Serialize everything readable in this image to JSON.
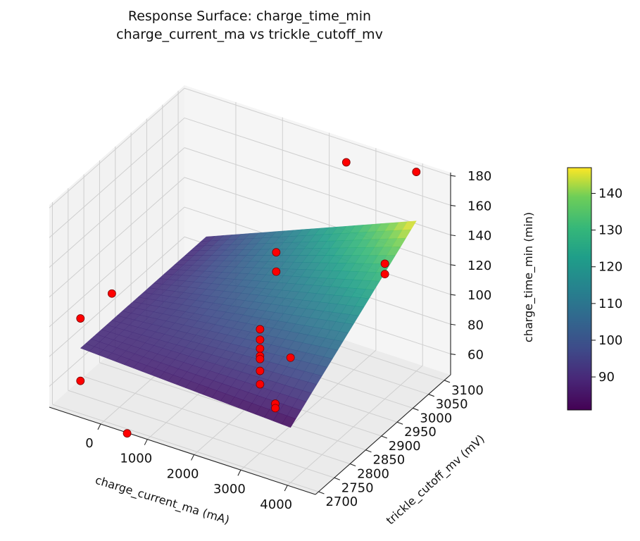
{
  "chart_data": {
    "type": "surface3d",
    "title": "Response Surface: charge_time_min",
    "subtitle": "charge_current_ma vs trickle_cutoff_mv",
    "xlabel": "charge_current_ma (mA)",
    "ylabel": "trickle_cutoff_mv (mV)",
    "zlabel": "charge_time_min (min)",
    "x_ticks": [
      "0",
      "1000",
      "2000",
      "3000",
      "4000"
    ],
    "y_ticks": [
      "2700",
      "2750",
      "2800",
      "2850",
      "2900",
      "2950",
      "3000",
      "3050",
      "3100"
    ],
    "z_ticks": [
      "60",
      "80",
      "100",
      "120",
      "140",
      "160",
      "180"
    ],
    "xlim": [
      -1100,
      4600
    ],
    "ylim": [
      2690,
      3120
    ],
    "zlim": [
      46,
      182
    ],
    "grid": true,
    "colormap": "viridis",
    "colorbar": {
      "ticks": [
        "90",
        "100",
        "110",
        "120",
        "130",
        "140"
      ],
      "min": 81,
      "max": 147
    },
    "surface": {
      "x_range": [
        -500,
        4000
      ],
      "y_range": [
        2700,
        3100
      ],
      "corner_values": {
        "x_min_y_min": 90,
        "x_max_y_min": 83,
        "x_min_y_max": 90,
        "x_max_y_max": 147
      }
    },
    "points": [
      {
        "x": 2500,
        "y": 3100,
        "z": 171
      },
      {
        "x": 4000,
        "y": 3100,
        "z": 180
      },
      {
        "x": 4000,
        "y": 3000,
        "z": 137
      },
      {
        "x": 4000,
        "y": 3000,
        "z": 130
      },
      {
        "x": 1000,
        "y": 3100,
        "z": 95
      },
      {
        "x": 1000,
        "y": 3100,
        "z": 82
      },
      {
        "x": -500,
        "y": 2700,
        "z": 110
      },
      {
        "x": -500,
        "y": 2800,
        "z": 108
      },
      {
        "x": -500,
        "y": 2700,
        "z": 68
      },
      {
        "x": 4000,
        "y": 2700,
        "z": 130
      },
      {
        "x": 500,
        "y": 2700,
        "z": 43
      },
      {
        "x": 2000,
        "y": 2900,
        "z": 91
      },
      {
        "x": 2000,
        "y": 2900,
        "z": 84
      },
      {
        "x": 2000,
        "y": 2900,
        "z": 78
      },
      {
        "x": 2000,
        "y": 2900,
        "z": 73
      },
      {
        "x": 2000,
        "y": 2900,
        "z": 71
      },
      {
        "x": 2000,
        "y": 2900,
        "z": 63
      },
      {
        "x": 2000,
        "y": 2900,
        "z": 54
      },
      {
        "x": 3000,
        "y": 2800,
        "z": 70
      },
      {
        "x": 3000,
        "y": 2800,
        "z": 67
      }
    ],
    "point_color": "#ff0000"
  }
}
